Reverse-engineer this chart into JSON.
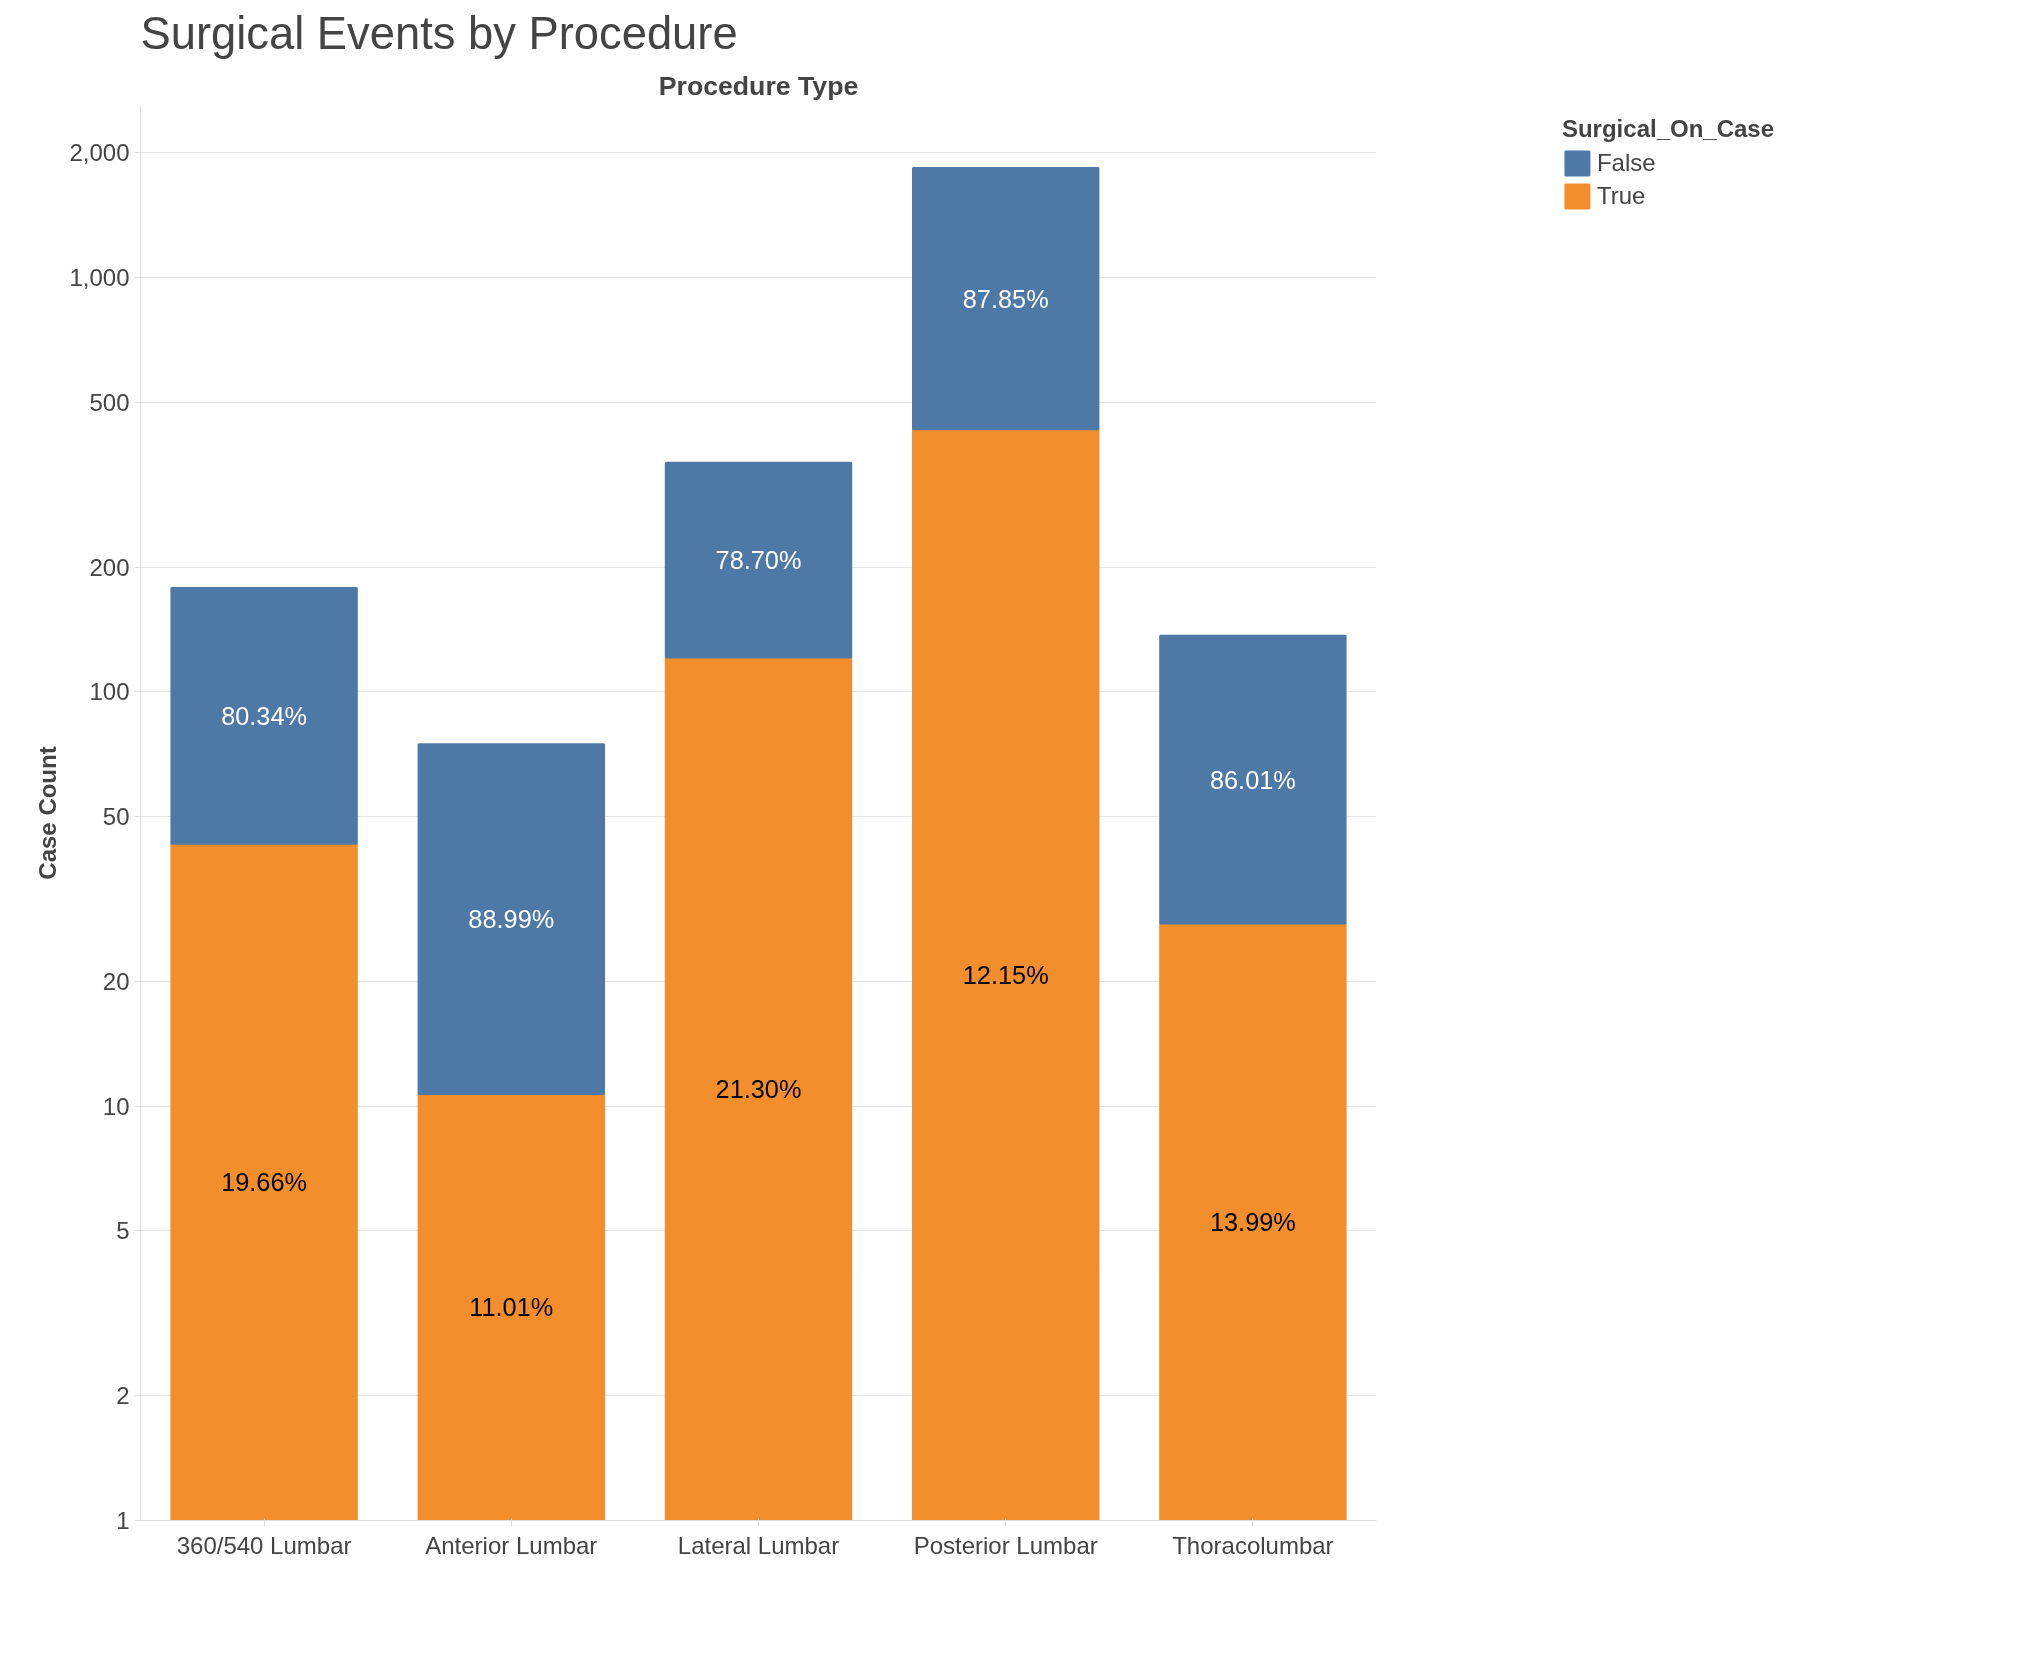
{
  "chart_data": {
    "type": "bar",
    "title": "Surgical Events by Procedure",
    "xlabel": "Procedure Type",
    "ylabel": "Case Count",
    "legend_title": "Surgical_On_Case",
    "categories": [
      "360/540 Lumbar",
      "Anterior Lumbar",
      "Lateral Lumbar",
      "Posterior Lumbar",
      "Thoracolumbar"
    ],
    "stacked": true,
    "log": true,
    "grid": "y",
    "legend": "top right",
    "ylim": [
      1,
      2600
    ],
    "yticks": [
      1,
      2,
      5,
      10,
      20,
      50,
      100,
      200,
      500,
      {
        "value": 1000,
        "label": "1,000"
      },
      {
        "value": 2000,
        "label": "2,000"
      }
    ],
    "series": [
      {
        "name": "True",
        "color": "#f28e2b",
        "values": [
          43,
          10.7,
          121,
          430,
          27.6
        ]
      },
      {
        "name": "False",
        "color": "#4e79a7",
        "values": [
          135,
          64,
          236,
          1407,
          109
        ]
      }
    ],
    "annotations": [
      "19.66%",
      "80.34%",
      "11.01%",
      "88.99%",
      "21.30%",
      "78.70%",
      "12.15%",
      "87.85%",
      "13.99%",
      "86.01%"
    ]
  }
}
